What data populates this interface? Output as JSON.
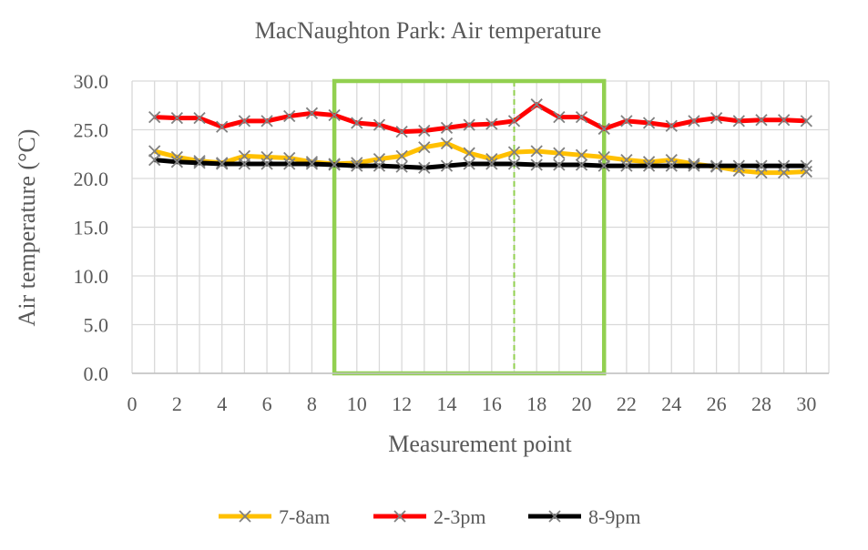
{
  "chart_data": {
    "type": "line",
    "title": "MacNaughton Park: Air temperature",
    "xlabel": "Measurement point",
    "ylabel": "Air temperature (°C)",
    "xlim": [
      0,
      31
    ],
    "ylim": [
      0,
      30
    ],
    "x_ticks": [
      0,
      2,
      4,
      6,
      8,
      10,
      12,
      14,
      16,
      18,
      20,
      22,
      24,
      26,
      28,
      30
    ],
    "y_ticks": [
      "0.0",
      "5.0",
      "10.0",
      "15.0",
      "20.0",
      "25.0",
      "30.0"
    ],
    "grid": "on",
    "legend_position": "bottom",
    "x": [
      1,
      2,
      3,
      4,
      5,
      6,
      7,
      8,
      9,
      10,
      11,
      12,
      13,
      14,
      15,
      16,
      17,
      18,
      19,
      20,
      21,
      22,
      23,
      24,
      25,
      26,
      27,
      28,
      29,
      30
    ],
    "series": [
      {
        "name": "7-8am",
        "color": "#FFC000",
        "marker": "x",
        "values": [
          22.8,
          22.2,
          21.8,
          21.6,
          22.3,
          22.2,
          22.1,
          21.7,
          21.5,
          21.6,
          22.0,
          22.3,
          23.2,
          23.6,
          22.6,
          22.0,
          22.7,
          22.8,
          22.6,
          22.4,
          22.2,
          21.9,
          21.7,
          21.9,
          21.5,
          21.2,
          20.8,
          20.6,
          20.6,
          20.7
        ]
      },
      {
        "name": "2-3pm",
        "color": "#FF0000",
        "marker": "x",
        "values": [
          26.3,
          26.2,
          26.2,
          25.3,
          25.9,
          25.9,
          26.4,
          26.7,
          26.5,
          25.7,
          25.5,
          24.8,
          24.9,
          25.2,
          25.5,
          25.6,
          25.9,
          27.6,
          26.3,
          26.3,
          25.1,
          25.9,
          25.7,
          25.4,
          25.9,
          26.2,
          25.9,
          26.0,
          26.0,
          25.9
        ]
      },
      {
        "name": "8-9pm",
        "color": "#000000",
        "marker": "x",
        "values": [
          21.9,
          21.7,
          21.6,
          21.5,
          21.5,
          21.5,
          21.5,
          21.5,
          21.4,
          21.3,
          21.3,
          21.2,
          21.1,
          21.3,
          21.5,
          21.5,
          21.5,
          21.4,
          21.4,
          21.4,
          21.3,
          21.3,
          21.3,
          21.3,
          21.3,
          21.3,
          21.3,
          21.3,
          21.3,
          21.3
        ]
      }
    ],
    "annotations": {
      "highlight_box_x_range": [
        9,
        21
      ],
      "highlight_box_color": "#92D050",
      "dashed_line_x": 17
    }
  }
}
